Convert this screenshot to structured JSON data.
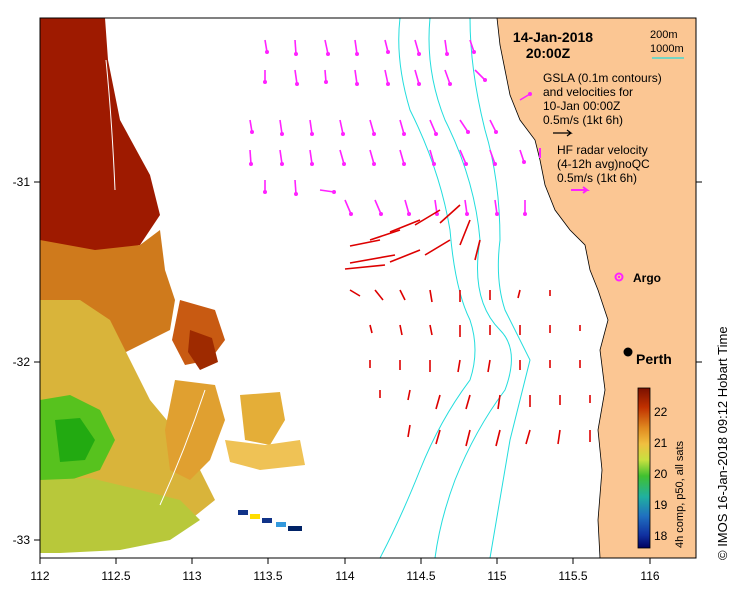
{
  "header": {
    "date": "14-Jan-2018",
    "time": "20:00Z"
  },
  "depth_legend": {
    "contour1": "200m",
    "contour2": "1000m"
  },
  "gsla_legend": {
    "line1": "GSLA (0.1m contours)",
    "line2": "and velocities for",
    "line3": "10-Jan 00:00Z",
    "scale": "0.5m/s (1kt 6h)"
  },
  "hf_legend": {
    "line1": "HF radar velocity",
    "line2": "(4-12h avg)noQC",
    "scale": "0.5m/s (1kt 6h)"
  },
  "places": {
    "argo": "Argo",
    "perth": "Perth"
  },
  "axes": {
    "x_ticks": [
      "112",
      "112.5",
      "113",
      "113.5",
      "114",
      "114.5",
      "115",
      "115.5",
      "116"
    ],
    "y_ticks": [
      "-31",
      "-32",
      "-33"
    ]
  },
  "colorbar": {
    "label": "4h comp, p50, all sats",
    "ticks": [
      "22",
      "21",
      "20",
      "19",
      "18"
    ]
  },
  "footer": {
    "credit": "© IMOS 16-Jan-2018 09:12 Hobart Time"
  },
  "colors": {
    "land": "#fbc693",
    "ocean": "#ffffff",
    "hf_arrow": "#ff22ff",
    "gsla_arrow": "#dd0000",
    "contour": "#22dddd",
    "sst_warm": "#a01800",
    "sst_mid": "#dda030",
    "sst_cool": "#22bb11"
  }
}
